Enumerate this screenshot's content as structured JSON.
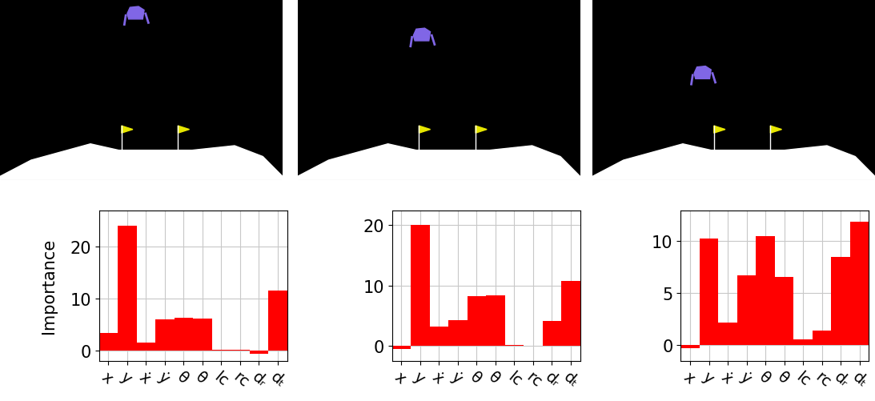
{
  "chart_data": [
    {
      "type": "bar",
      "y_label": "Importance",
      "categories": [
        "x",
        "y",
        "ẋ",
        "ẏ",
        "θ",
        "θ̇",
        "lc",
        "rc",
        "dᵣ",
        "dₜ"
      ],
      "values": [
        3.4,
        24,
        1.5,
        6,
        6.3,
        6.1,
        0.1,
        0.05,
        -0.6,
        11.6
      ],
      "color": "#ff0000",
      "ylim": [
        -2,
        27
      ],
      "yticks": [
        0,
        10,
        20
      ],
      "grid": true
    },
    {
      "type": "bar",
      "categories": [
        "x",
        "y",
        "ẋ",
        "ẏ",
        "θ",
        "θ̇",
        "lc",
        "rc",
        "dᵣ",
        "dₜ"
      ],
      "values": [
        -0.5,
        20,
        3.2,
        4.2,
        8.2,
        8.3,
        0.1,
        0.05,
        4.1,
        10.7
      ],
      "color": "#ff0000",
      "ylim": [
        -2.5,
        22.5
      ],
      "yticks": [
        0,
        10,
        20
      ],
      "grid": true
    },
    {
      "type": "bar",
      "categories": [
        "x",
        "y",
        "ẋ",
        "ẏ",
        "θ",
        "θ̇",
        "lc",
        "rc",
        "dᵣ",
        "dₜ"
      ],
      "values": [
        -0.3,
        10.3,
        2.2,
        6.7,
        10.5,
        6.6,
        0.6,
        1.4,
        8.5,
        11.9
      ],
      "color": "#ff0000",
      "ylim": [
        -1.5,
        13
      ],
      "yticks": [
        0,
        5,
        10
      ],
      "grid": true
    }
  ]
}
